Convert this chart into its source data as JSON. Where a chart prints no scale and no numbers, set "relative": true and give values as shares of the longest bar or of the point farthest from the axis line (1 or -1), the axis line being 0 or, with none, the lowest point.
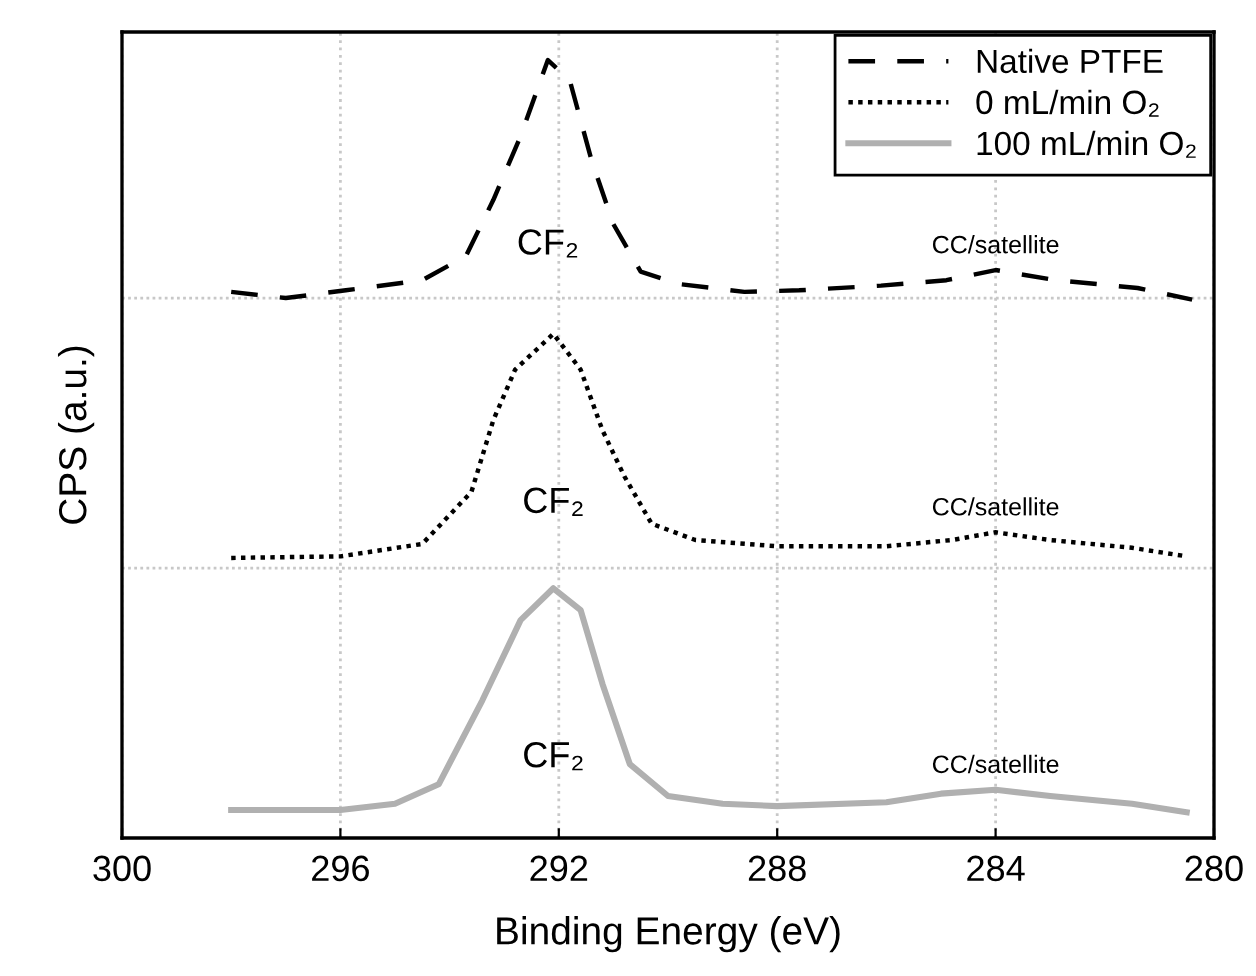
{
  "chart_data": {
    "type": "line",
    "relative": true,
    "xlabel": "Binding Energy (eV)",
    "ylabel": "CPS (a.u.)",
    "xlim": [
      300,
      280
    ],
    "xticks": [
      300,
      296,
      292,
      288,
      284,
      280
    ],
    "grid": "x",
    "legend": "top right",
    "tick_labels": "x",
    "series": [
      {
        "name": "Native PTFE",
        "color": "#000000",
        "line_style": "dashed",
        "x": [
          298,
          297,
          295.9,
          294.5,
          293.7,
          293.2,
          292.7,
          292.2,
          291.8,
          291.4,
          291,
          290.5,
          289.8,
          288.6,
          287.6,
          286.1,
          284.9,
          284,
          282.9,
          281.4,
          280.4
        ],
        "values": [
          0.702,
          0.694,
          0.704,
          0.717,
          0.748,
          0.82,
          0.902,
          1.0,
          0.974,
          0.871,
          0.789,
          0.728,
          0.712,
          0.702,
          0.704,
          0.71,
          0.717,
          0.73,
          0.717,
          0.707,
          0.692
        ]
      },
      {
        "name": "0 mL/min O₂",
        "color": "#000000",
        "line_style": "dotted",
        "x": [
          298,
          296,
          294.5,
          293.6,
          293.2,
          292.8,
          292.1,
          291.6,
          291.2,
          290.8,
          290.3,
          289.5,
          288,
          286,
          284.8,
          284,
          283,
          281.5,
          280.5
        ],
        "values": [
          0.36,
          0.362,
          0.378,
          0.445,
          0.537,
          0.602,
          0.648,
          0.602,
          0.524,
          0.465,
          0.404,
          0.383,
          0.375,
          0.375,
          0.383,
          0.393,
          0.383,
          0.373,
          0.362
        ]
      },
      {
        "name": "100 mL/min O₂",
        "color": "#b0b0b0",
        "line_style": "solid",
        "x": [
          298,
          296,
          295,
          294.2,
          293.4,
          292.7,
          292.1,
          291.6,
          291.2,
          290.7,
          290,
          289,
          288,
          286,
          285,
          284,
          283,
          281.5,
          280.5
        ],
        "values": [
          0.036,
          0.036,
          0.044,
          0.069,
          0.177,
          0.28,
          0.321,
          0.293,
          0.198,
          0.095,
          0.054,
          0.044,
          0.041,
          0.046,
          0.057,
          0.062,
          0.054,
          0.044,
          0.033
        ]
      }
    ],
    "ref_lines": [
      {
        "axis": "y",
        "value": 0.694,
        "color": "#c8c8c8",
        "line_style": "dotted"
      },
      {
        "axis": "y",
        "value": 0.347,
        "color": "#c8c8c8",
        "line_style": "dotted"
      }
    ],
    "annotations": [
      "CF₂",
      "CC/satellite",
      "CF₂",
      "CC/satellite",
      "CF₂",
      "CC/satellite"
    ]
  }
}
